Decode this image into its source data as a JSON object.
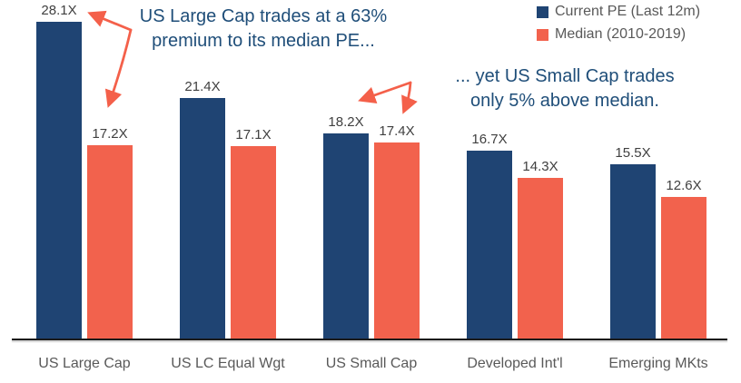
{
  "colors": {
    "bar_blue": "#1F4473",
    "bar_orange": "#F2624D",
    "annotation_blue": "#1F4E79",
    "arrow_orange": "#F4604A",
    "value_label_gray": "#404040",
    "category_label_gray": "#595959",
    "legend_text_gray": "#595959",
    "axis_line": "#1a1a1a"
  },
  "chart_data": {
    "type": "bar",
    "title": "",
    "xlabel": "",
    "ylabel": "",
    "categories": [
      "US Large Cap",
      "US LC Equal Wgt",
      "US Small Cap",
      "Developed Int'l",
      "Emerging MKts"
    ],
    "series": [
      {
        "name": "Current PE (Last 12m)",
        "color": "#1F4473",
        "values": [
          28.1,
          21.4,
          18.2,
          16.7,
          15.5
        ]
      },
      {
        "name": "Median (2010-2019)",
        "color": "#F2624D",
        "values": [
          17.2,
          17.1,
          17.4,
          14.3,
          12.6
        ]
      }
    ],
    "value_suffix": "X",
    "ylim": [
      0,
      30
    ],
    "grid": false,
    "legend_position": "top-right",
    "annotations": [
      {
        "lines": [
          "US Large Cap trades at a 63%",
          "premium to its median PE..."
        ]
      },
      {
        "lines": [
          "... yet US Small Cap trades",
          "only 5% above median."
        ]
      }
    ]
  }
}
